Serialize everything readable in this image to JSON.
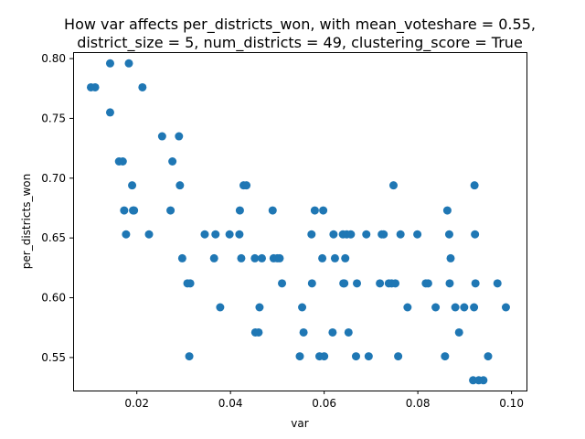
{
  "chart_data": {
    "type": "scatter",
    "title_lines": [
      "How var affects per_districts_won, with mean_voteshare = 0.55,",
      "district_size = 5, num_districts = 49, clustering_score = True"
    ],
    "xlabel": "var",
    "ylabel": "per_districts_won",
    "xlim": [
      0.0064,
      0.1032
    ],
    "ylim": [
      0.5224,
      0.8054
    ],
    "xticks": [
      0.02,
      0.04,
      0.06,
      0.08,
      0.1
    ],
    "xtick_labels": [
      "0.02",
      "0.04",
      "0.06",
      "0.08",
      "0.10"
    ],
    "yticks": [
      0.55,
      0.6,
      0.65,
      0.7,
      0.75,
      0.8
    ],
    "ytick_labels": [
      "0.55",
      "0.60",
      "0.65",
      "0.70",
      "0.75",
      "0.80"
    ],
    "grid": false,
    "marker_color": "#1f77b4",
    "series": [
      {
        "name": "per_districts_won",
        "points": [
          [
            0.0102,
            0.776
          ],
          [
            0.0111,
            0.776
          ],
          [
            0.0143,
            0.796
          ],
          [
            0.0143,
            0.755
          ],
          [
            0.0162,
            0.714
          ],
          [
            0.017,
            0.714
          ],
          [
            0.0173,
            0.673
          ],
          [
            0.0177,
            0.653
          ],
          [
            0.0183,
            0.796
          ],
          [
            0.019,
            0.694
          ],
          [
            0.0192,
            0.673
          ],
          [
            0.0194,
            0.673
          ],
          [
            0.0212,
            0.776
          ],
          [
            0.0226,
            0.653
          ],
          [
            0.0254,
            0.735
          ],
          [
            0.0272,
            0.673
          ],
          [
            0.0276,
            0.714
          ],
          [
            0.029,
            0.735
          ],
          [
            0.0292,
            0.694
          ],
          [
            0.0297,
            0.633
          ],
          [
            0.0308,
            0.612
          ],
          [
            0.0312,
            0.551
          ],
          [
            0.0314,
            0.612
          ],
          [
            0.0345,
            0.653
          ],
          [
            0.0365,
            0.633
          ],
          [
            0.0368,
            0.653
          ],
          [
            0.0378,
            0.592
          ],
          [
            0.0398,
            0.653
          ],
          [
            0.0419,
            0.653
          ],
          [
            0.042,
            0.673
          ],
          [
            0.0423,
            0.633
          ],
          [
            0.0428,
            0.694
          ],
          [
            0.0434,
            0.694
          ],
          [
            0.0452,
            0.633
          ],
          [
            0.0453,
            0.571
          ],
          [
            0.046,
            0.571
          ],
          [
            0.0462,
            0.592
          ],
          [
            0.0467,
            0.633
          ],
          [
            0.049,
            0.673
          ],
          [
            0.0492,
            0.633
          ],
          [
            0.05,
            0.633
          ],
          [
            0.0505,
            0.633
          ],
          [
            0.051,
            0.612
          ],
          [
            0.0548,
            0.551
          ],
          [
            0.0553,
            0.592
          ],
          [
            0.0556,
            0.571
          ],
          [
            0.0573,
            0.653
          ],
          [
            0.0574,
            0.612
          ],
          [
            0.058,
            0.673
          ],
          [
            0.059,
            0.551
          ],
          [
            0.0596,
            0.633
          ],
          [
            0.0598,
            0.673
          ],
          [
            0.06,
            0.551
          ],
          [
            0.0618,
            0.571
          ],
          [
            0.062,
            0.653
          ],
          [
            0.0623,
            0.633
          ],
          [
            0.064,
            0.653
          ],
          [
            0.0641,
            0.612
          ],
          [
            0.0643,
            0.612
          ],
          [
            0.0645,
            0.633
          ],
          [
            0.0648,
            0.653
          ],
          [
            0.0652,
            0.571
          ],
          [
            0.0657,
            0.653
          ],
          [
            0.0668,
            0.551
          ],
          [
            0.067,
            0.612
          ],
          [
            0.069,
            0.653
          ],
          [
            0.0695,
            0.551
          ],
          [
            0.0719,
            0.612
          ],
          [
            0.0723,
            0.653
          ],
          [
            0.0727,
            0.653
          ],
          [
            0.0738,
            0.612
          ],
          [
            0.0744,
            0.612
          ],
          [
            0.0748,
            0.694
          ],
          [
            0.0752,
            0.612
          ],
          [
            0.0758,
            0.551
          ],
          [
            0.0763,
            0.653
          ],
          [
            0.0778,
            0.592
          ],
          [
            0.0799,
            0.653
          ],
          [
            0.0817,
            0.612
          ],
          [
            0.0822,
            0.612
          ],
          [
            0.0838,
            0.592
          ],
          [
            0.0858,
            0.551
          ],
          [
            0.0863,
            0.673
          ],
          [
            0.0867,
            0.653
          ],
          [
            0.0868,
            0.612
          ],
          [
            0.087,
            0.633
          ],
          [
            0.088,
            0.592
          ],
          [
            0.0888,
            0.571
          ],
          [
            0.0899,
            0.592
          ],
          [
            0.0918,
            0.531
          ],
          [
            0.092,
            0.592
          ],
          [
            0.0921,
            0.694
          ],
          [
            0.0922,
            0.653
          ],
          [
            0.0923,
            0.612
          ],
          [
            0.093,
            0.531
          ],
          [
            0.094,
            0.531
          ],
          [
            0.095,
            0.551
          ],
          [
            0.097,
            0.612
          ],
          [
            0.0988,
            0.592
          ]
        ]
      }
    ]
  }
}
